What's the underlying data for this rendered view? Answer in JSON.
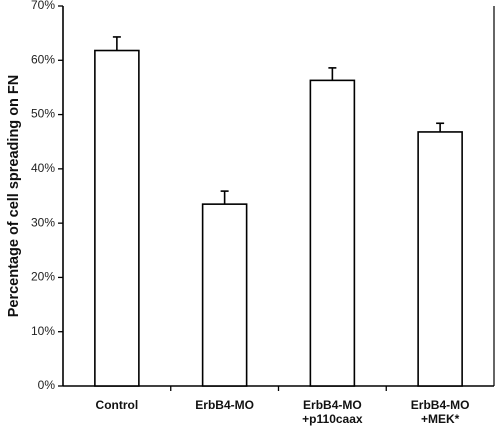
{
  "chart_data": {
    "type": "bar",
    "title": "",
    "xlabel": "",
    "ylabel": "Percentage of cell spreading on FN",
    "ylim": [
      0,
      70
    ],
    "y_ticks": [
      "0%",
      "10%",
      "20%",
      "30%",
      "40%",
      "50%",
      "60%",
      "70%"
    ],
    "grid": false,
    "categories": [
      [
        "Control"
      ],
      [
        "ErbB4-MO"
      ],
      [
        "ErbB4-MO",
        "+p110caax"
      ],
      [
        "ErbB4-MO",
        "+MEK*"
      ]
    ],
    "values": [
      61.8,
      33.5,
      56.3,
      46.8
    ],
    "errors": [
      2.5,
      2.4,
      2.3,
      1.6
    ],
    "bar_fill": "#ffffff",
    "bar_stroke": "#000000"
  }
}
